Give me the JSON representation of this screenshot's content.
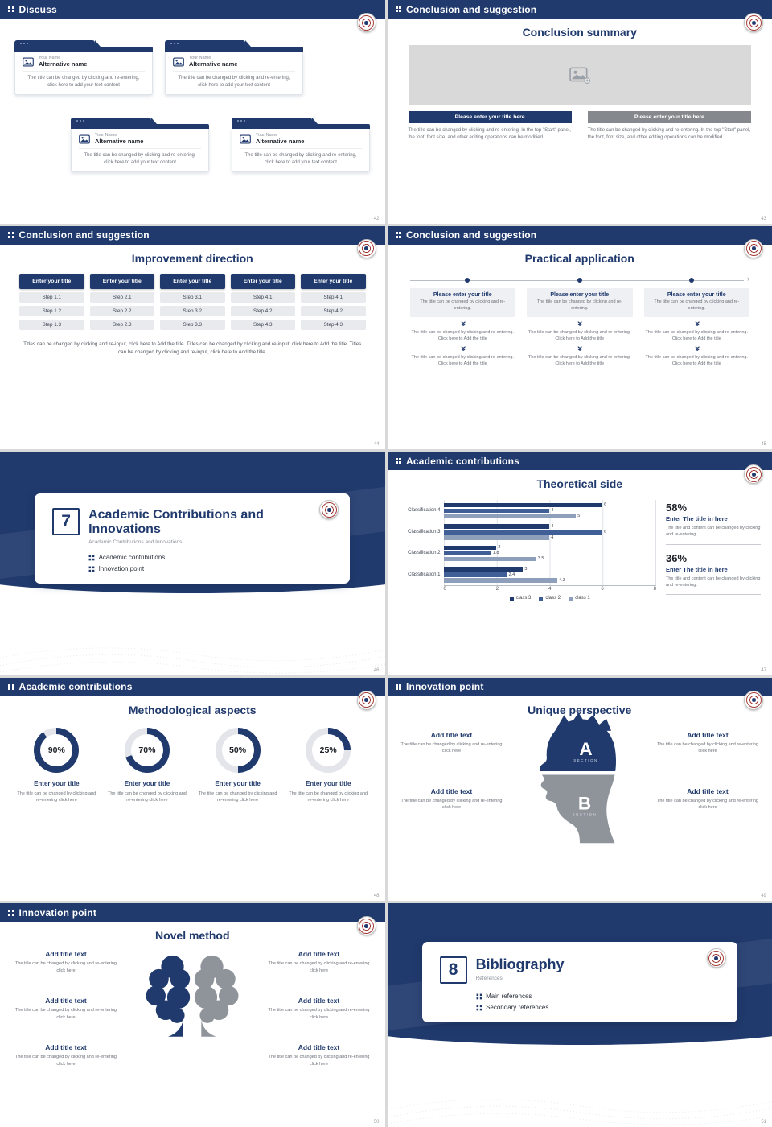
{
  "colors": {
    "navy": "#203a6d",
    "navy_mid": "#3f5f96",
    "blue_light": "#8e9fbc",
    "gray_bar": "#85888d",
    "donut_track": "#e3e5ea"
  },
  "icons": {
    "double_chevron_down": "«",
    "arrow_right": "›"
  },
  "slides": {
    "s42": {
      "page": "42",
      "header": "Discuss",
      "cards": [
        {
          "name": "Your Name",
          "alt": "Alternative name",
          "text": "The title can be changed by clicking and re-entering, click here to add your text content"
        },
        {
          "name": "Your Name",
          "alt": "Alternative name",
          "text": "The title can be changed by clicking and re-entering, click here to add your text content"
        },
        {
          "name": "Your Name",
          "alt": "Alternative name",
          "text": "The title can be changed by clicking and re-entering, click here to add your text content"
        },
        {
          "name": "Your Name",
          "alt": "Alternative name",
          "text": "The title can be changed by clicking and re-entering, click here to add your text content"
        }
      ]
    },
    "s43": {
      "page": "43",
      "header": "Conclusion and suggestion",
      "title": "Conclusion summary",
      "columns": [
        {
          "bar": "Please enter your title here",
          "text": "The title can be changed by clicking and re-entering. In the top \"Start\" panel, the font, font size, and other editing operations can be modified"
        },
        {
          "bar": "Please enter your title here",
          "text": "The title can be changed by clicking and re-entering. In the top \"Start\" panel, the font, font size, and other editing operations can be modified"
        }
      ]
    },
    "s44": {
      "page": "44",
      "header": "Conclusion and suggestion",
      "title": "Improvement direction",
      "columns": [
        {
          "title": "Enter your title",
          "steps": [
            "Step 1.1",
            "Step 1.2",
            "Step 1.3"
          ]
        },
        {
          "title": "Enter your title",
          "steps": [
            "Step 2.1",
            "Step 2.2",
            "Step 2.3"
          ]
        },
        {
          "title": "Enter your title",
          "steps": [
            "Step 3.1",
            "Step 3.2",
            "Step 3.3"
          ]
        },
        {
          "title": "Enter your title",
          "steps": [
            "Step 4.1",
            "Step 4.2",
            "Step 4.3"
          ]
        },
        {
          "title": "Enter your title",
          "steps": [
            "Step 4.1",
            "Step 4.2",
            "Step 4.3"
          ]
        }
      ],
      "footer": "Titles can be changed by clicking and re-input, click here to Add the title. Titles can be changed by clicking and re-input, click here to Add the title. Titles can be changed by clicking and re-input, click here to Add the title."
    },
    "s45": {
      "page": "45",
      "header": "Conclusion and suggestion",
      "title": "Practical application",
      "columns": [
        {
          "title": "Please enter your title",
          "sub": "The title can be changed by clicking and re-entering.",
          "text1": "The title can be changed by clicking and re-entering. Click here to Add the title",
          "text2": "The title can be changed by clicking and re-entering. Click here to Add the title"
        },
        {
          "title": "Please enter your title",
          "sub": "The title can be changed by clicking and re-entering.",
          "text1": "The title can be changed by clicking and re-entering. Click here to Add the title",
          "text2": "The title can be changed by clicking and re-entering. Click here to Add the title"
        },
        {
          "title": "Please enter your title",
          "sub": "The title can be changed by clicking and re-entering.",
          "text1": "The title can be changed by clicking and re-entering. Click here to Add the title",
          "text2": "The title can be changed by clicking and re-entering. Click here to Add the title"
        }
      ]
    },
    "s46": {
      "page": "46",
      "number": "7",
      "title": "Academic Contributions and Innovations",
      "subtitle": "Academic Contributions and Innovations",
      "bullets": [
        "Academic contributions",
        "Innovation point"
      ]
    },
    "s47": {
      "page": "47",
      "header": "Academic contributions",
      "title": "Theoretical side",
      "stats": [
        {
          "pct": "58%",
          "title": "Enter The title in here",
          "text": "The title and content can be changed by clicking and re-entering."
        },
        {
          "pct": "36%",
          "title": "Enter The title in here",
          "text": "The title and content can be changed by clicking and re-entering."
        }
      ]
    },
    "s48": {
      "page": "48",
      "header": "Academic contributions",
      "title": "Methodological aspects",
      "donuts": [
        {
          "pct": 90,
          "label": "90%",
          "title": "Enter your title",
          "text": "The title can be changed by clicking and re-entering click here"
        },
        {
          "pct": 70,
          "label": "70%",
          "title": "Enter your title",
          "text": "The title can be changed by clicking and re-entering click here"
        },
        {
          "pct": 50,
          "label": "50%",
          "title": "Enter your title",
          "text": "The title can be changed by clicking and re-entering click here"
        },
        {
          "pct": 25,
          "label": "25%",
          "title": "Enter your title",
          "text": "The title can be changed by clicking and re-entering click here"
        }
      ]
    },
    "s49": {
      "page": "49",
      "header": "Innovation point",
      "title": "Unique perspective",
      "sections": [
        {
          "letter": "A",
          "label": "SECTION"
        },
        {
          "letter": "B",
          "label": "SECTION"
        }
      ],
      "items": [
        {
          "title": "Add title text",
          "text": "The title can be changed by clicking and re-entering click here"
        },
        {
          "title": "Add title text",
          "text": "The title can be changed by clicking and re-entering click here"
        },
        {
          "title": "Add title text",
          "text": "The title can be changed by clicking and re-entering click here"
        },
        {
          "title": "Add title text",
          "text": "The title can be changed by clicking and re-entering click here"
        }
      ]
    },
    "s50": {
      "page": "50",
      "header": "Innovation point",
      "title": "Novel method",
      "items": [
        {
          "title": "Add title text",
          "text": "The title can be changed by clicking and re-entering click here"
        },
        {
          "title": "Add title text",
          "text": "The title can be changed by clicking and re-entering click here"
        },
        {
          "title": "Add title text",
          "text": "The title can be changed by clicking and re-entering click here"
        },
        {
          "title": "Add title text",
          "text": "The title can be changed by clicking and re-entering click here"
        },
        {
          "title": "Add title text",
          "text": "The title can be changed by clicking and re-entering click here"
        },
        {
          "title": "Add title text",
          "text": "The title can be changed by clicking and re-entering click here"
        }
      ]
    },
    "s51": {
      "page": "51",
      "number": "8",
      "title": "Bibliography",
      "subtitle": "References",
      "bullets": [
        "Main references",
        "Secondary references"
      ]
    }
  },
  "chart_data": {
    "type": "bar",
    "orientation": "horizontal",
    "title": "Theoretical side",
    "categories": [
      "Classification 1",
      "Classification 2",
      "Classification 3",
      "Classification 4"
    ],
    "series": [
      {
        "name": "class 1",
        "color": "#8e9fbc",
        "values": [
          4.3,
          3.5,
          4,
          5
        ]
      },
      {
        "name": "class 2",
        "color": "#3f5f96",
        "values": [
          2.4,
          1.8,
          6,
          4
        ]
      },
      {
        "name": "class 3",
        "color": "#203a6d",
        "values": [
          3,
          2,
          4,
          6
        ]
      }
    ],
    "xlim": [
      0,
      8
    ],
    "xticks": [
      0,
      2,
      4,
      6,
      8
    ],
    "grid": true,
    "legend_position": "bottom"
  }
}
